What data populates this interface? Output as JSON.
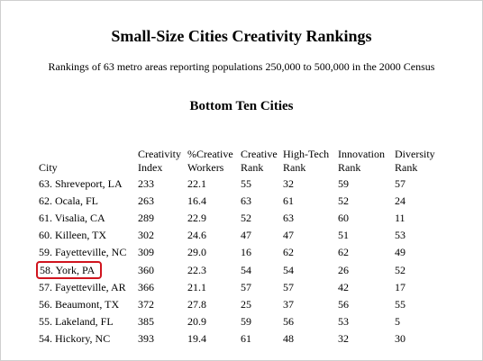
{
  "title": "Small-Size Cities Creativity Rankings",
  "subtitle": "Rankings of 63 metro areas reporting populations 250,000 to 500,000 in the 2000 Census",
  "section_title": "Bottom Ten Cities",
  "headers": {
    "city": "City",
    "creativity_index": [
      "Creativity",
      "Index"
    ],
    "creative_workers": [
      "%Creative",
      "Workers"
    ],
    "creative_rank": [
      "Creative",
      "Rank"
    ],
    "hightech_rank": [
      "High-Tech",
      "Rank"
    ],
    "innovation_rank": [
      "Innovation",
      "Rank"
    ],
    "diversity_rank": [
      "Diversity",
      "Rank"
    ]
  },
  "rows": [
    {
      "city": "63. Shreveport, LA",
      "creativity_index": "233",
      "creative_workers": "22.1",
      "creative_rank": "55",
      "hightech_rank": "32",
      "innovation_rank": "59",
      "diversity_rank": "57",
      "highlighted": false
    },
    {
      "city": "62. Ocala, FL",
      "creativity_index": "263",
      "creative_workers": "16.4",
      "creative_rank": "63",
      "hightech_rank": "61",
      "innovation_rank": "52",
      "diversity_rank": "24",
      "highlighted": false
    },
    {
      "city": "61. Visalia, CA",
      "creativity_index": "289",
      "creative_workers": "22.9",
      "creative_rank": "52",
      "hightech_rank": "63",
      "innovation_rank": "60",
      "diversity_rank": "11",
      "highlighted": false
    },
    {
      "city": "60. Killeen, TX",
      "creativity_index": "302",
      "creative_workers": "24.6",
      "creative_rank": "47",
      "hightech_rank": "47",
      "innovation_rank": "51",
      "diversity_rank": "53",
      "highlighted": false
    },
    {
      "city": "59. Fayetteville, NC",
      "creativity_index": "309",
      "creative_workers": "29.0",
      "creative_rank": "16",
      "hightech_rank": "62",
      "innovation_rank": "62",
      "diversity_rank": "49",
      "highlighted": false
    },
    {
      "city": "58. York, PA",
      "creativity_index": "360",
      "creative_workers": "22.3",
      "creative_rank": "54",
      "hightech_rank": "54",
      "innovation_rank": "26",
      "diversity_rank": "52",
      "highlighted": true
    },
    {
      "city": "57. Fayetteville, AR",
      "creativity_index": "366",
      "creative_workers": "21.1",
      "creative_rank": "57",
      "hightech_rank": "57",
      "innovation_rank": "42",
      "diversity_rank": "17",
      "highlighted": false
    },
    {
      "city": "56. Beaumont, TX",
      "creativity_index": "372",
      "creative_workers": "27.8",
      "creative_rank": "25",
      "hightech_rank": "37",
      "innovation_rank": "56",
      "diversity_rank": "55",
      "highlighted": false
    },
    {
      "city": "55. Lakeland, FL",
      "creativity_index": "385",
      "creative_workers": "20.9",
      "creative_rank": "59",
      "hightech_rank": "56",
      "innovation_rank": "53",
      "diversity_rank": "5",
      "highlighted": false
    },
    {
      "city": "54. Hickory, NC",
      "creativity_index": "393",
      "creative_workers": "19.4",
      "creative_rank": "61",
      "hightech_rank": "48",
      "innovation_rank": "32",
      "diversity_rank": "30",
      "highlighted": false
    }
  ],
  "highlight_color": "#d0141e"
}
